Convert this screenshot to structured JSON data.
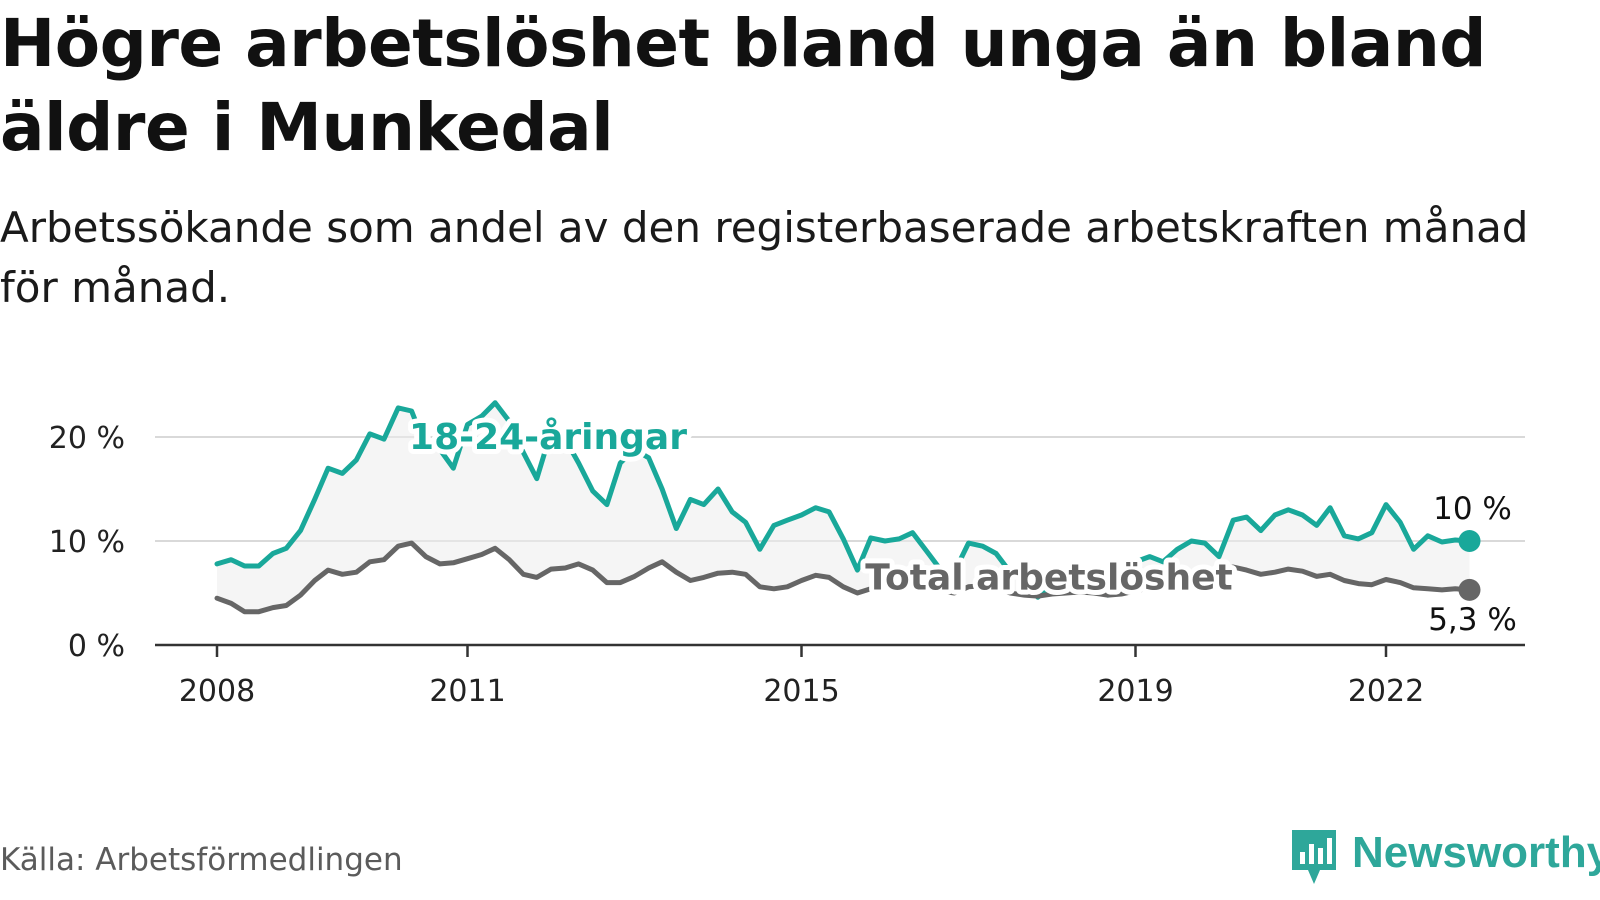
{
  "title": "Högre arbetslöshet bland unga än bland äldre i Munkedal",
  "subtitle": "Arbetssökande som andel av den registerbaserade arbetskraften månad för månad.",
  "source": "Källa: Arbetsförmedlingen",
  "brand": {
    "name": "Newsworthy",
    "icon": "newsworthy-logo-icon",
    "color": "#2ea79a"
  },
  "chart_data": {
    "type": "line",
    "title": "Högre arbetslöshet bland unga än bland äldre i Munkedal",
    "xlabel": "",
    "ylabel": "",
    "x_range": [
      2008,
      2023
    ],
    "ylim": [
      0,
      25
    ],
    "y_ticks": [
      {
        "value": 0,
        "label": "0 %"
      },
      {
        "value": 10,
        "label": "10 %"
      },
      {
        "value": 20,
        "label": "20 %"
      }
    ],
    "x_ticks": [
      {
        "value": 2008,
        "label": "2008"
      },
      {
        "value": 2011,
        "label": "2011"
      },
      {
        "value": 2015,
        "label": "2015"
      },
      {
        "value": 2019,
        "label": "2019"
      },
      {
        "value": 2022,
        "label": "2022"
      }
    ],
    "grid": true,
    "series": [
      {
        "name": "18-24-åringar",
        "color": "#19a89a",
        "end_label": "10 %",
        "points": [
          [
            2008.0,
            7.8
          ],
          [
            2008.17,
            8.2
          ],
          [
            2008.33,
            7.6
          ],
          [
            2008.5,
            7.6
          ],
          [
            2008.67,
            8.8
          ],
          [
            2008.83,
            9.3
          ],
          [
            2009.0,
            11.0
          ],
          [
            2009.17,
            14.0
          ],
          [
            2009.33,
            17.0
          ],
          [
            2009.5,
            16.5
          ],
          [
            2009.67,
            17.8
          ],
          [
            2009.83,
            20.3
          ],
          [
            2010.0,
            19.8
          ],
          [
            2010.17,
            22.8
          ],
          [
            2010.33,
            22.5
          ],
          [
            2010.5,
            19.0
          ],
          [
            2010.67,
            18.8
          ],
          [
            2010.83,
            17.0
          ],
          [
            2011.0,
            21.2
          ],
          [
            2011.17,
            22.0
          ],
          [
            2011.33,
            23.3
          ],
          [
            2011.5,
            21.5
          ],
          [
            2011.67,
            18.5
          ],
          [
            2011.83,
            16.0
          ],
          [
            2012.0,
            20.5
          ],
          [
            2012.17,
            19.8
          ],
          [
            2012.33,
            17.5
          ],
          [
            2012.5,
            14.8
          ],
          [
            2012.67,
            13.5
          ],
          [
            2012.83,
            17.5
          ],
          [
            2013.0,
            18.8
          ],
          [
            2013.17,
            18.0
          ],
          [
            2013.33,
            15.0
          ],
          [
            2013.5,
            11.2
          ],
          [
            2013.67,
            14.0
          ],
          [
            2013.83,
            13.5
          ],
          [
            2014.0,
            15.0
          ],
          [
            2014.17,
            12.8
          ],
          [
            2014.33,
            11.8
          ],
          [
            2014.5,
            9.2
          ],
          [
            2014.67,
            11.5
          ],
          [
            2014.83,
            12.0
          ],
          [
            2015.0,
            12.5
          ],
          [
            2015.17,
            13.2
          ],
          [
            2015.33,
            12.8
          ],
          [
            2015.5,
            10.2
          ],
          [
            2015.67,
            7.2
          ],
          [
            2015.83,
            10.3
          ],
          [
            2016.0,
            10.0
          ],
          [
            2016.17,
            10.2
          ],
          [
            2016.33,
            10.8
          ],
          [
            2016.5,
            9.0
          ],
          [
            2016.67,
            7.2
          ],
          [
            2016.83,
            7.0
          ],
          [
            2017.0,
            9.8
          ],
          [
            2017.17,
            9.5
          ],
          [
            2017.33,
            8.8
          ],
          [
            2017.5,
            7.0
          ],
          [
            2017.67,
            6.0
          ],
          [
            2017.83,
            4.6
          ],
          [
            2018.0,
            5.8
          ],
          [
            2018.17,
            7.0
          ],
          [
            2018.33,
            6.5
          ],
          [
            2018.5,
            5.5
          ],
          [
            2018.67,
            4.8
          ],
          [
            2018.83,
            5.8
          ],
          [
            2019.0,
            8.0
          ],
          [
            2019.17,
            8.5
          ],
          [
            2019.33,
            8.0
          ],
          [
            2019.5,
            9.2
          ],
          [
            2019.67,
            10.0
          ],
          [
            2019.83,
            9.8
          ],
          [
            2020.0,
            8.5
          ],
          [
            2020.17,
            12.0
          ],
          [
            2020.33,
            12.3
          ],
          [
            2020.5,
            11.0
          ],
          [
            2020.67,
            12.5
          ],
          [
            2020.83,
            13.0
          ],
          [
            2021.0,
            12.5
          ],
          [
            2021.17,
            11.5
          ],
          [
            2021.33,
            13.2
          ],
          [
            2021.5,
            10.5
          ],
          [
            2021.67,
            10.2
          ],
          [
            2021.83,
            10.8
          ],
          [
            2022.0,
            13.5
          ],
          [
            2022.17,
            11.8
          ],
          [
            2022.33,
            9.2
          ],
          [
            2022.5,
            10.5
          ],
          [
            2022.67,
            9.9
          ],
          [
            2022.83,
            10.1
          ],
          [
            2023.0,
            10.0
          ]
        ]
      },
      {
        "name": "Total arbetslöshet",
        "color": "#666666",
        "end_label": "5,3 %",
        "points": [
          [
            2008.0,
            4.5
          ],
          [
            2008.17,
            4.0
          ],
          [
            2008.33,
            3.2
          ],
          [
            2008.5,
            3.2
          ],
          [
            2008.67,
            3.6
          ],
          [
            2008.83,
            3.8
          ],
          [
            2009.0,
            4.8
          ],
          [
            2009.17,
            6.2
          ],
          [
            2009.33,
            7.2
          ],
          [
            2009.5,
            6.8
          ],
          [
            2009.67,
            7.0
          ],
          [
            2009.83,
            8.0
          ],
          [
            2010.0,
            8.2
          ],
          [
            2010.17,
            9.5
          ],
          [
            2010.33,
            9.8
          ],
          [
            2010.5,
            8.5
          ],
          [
            2010.67,
            7.8
          ],
          [
            2010.83,
            7.9
          ],
          [
            2011.0,
            8.3
          ],
          [
            2011.17,
            8.7
          ],
          [
            2011.33,
            9.3
          ],
          [
            2011.5,
            8.2
          ],
          [
            2011.67,
            6.8
          ],
          [
            2011.83,
            6.5
          ],
          [
            2012.0,
            7.3
          ],
          [
            2012.17,
            7.4
          ],
          [
            2012.33,
            7.8
          ],
          [
            2012.5,
            7.2
          ],
          [
            2012.67,
            6.0
          ],
          [
            2012.83,
            6.0
          ],
          [
            2013.0,
            6.6
          ],
          [
            2013.17,
            7.4
          ],
          [
            2013.33,
            8.0
          ],
          [
            2013.5,
            7.0
          ],
          [
            2013.67,
            6.2
          ],
          [
            2013.83,
            6.5
          ],
          [
            2014.0,
            6.9
          ],
          [
            2014.17,
            7.0
          ],
          [
            2014.33,
            6.8
          ],
          [
            2014.5,
            5.6
          ],
          [
            2014.67,
            5.4
          ],
          [
            2014.83,
            5.6
          ],
          [
            2015.0,
            6.2
          ],
          [
            2015.17,
            6.7
          ],
          [
            2015.33,
            6.5
          ],
          [
            2015.5,
            5.6
          ],
          [
            2015.67,
            5.0
          ],
          [
            2015.83,
            5.4
          ],
          [
            2016.0,
            5.8
          ],
          [
            2016.17,
            5.8
          ],
          [
            2016.33,
            5.7
          ],
          [
            2016.5,
            5.4
          ],
          [
            2016.67,
            5.2
          ],
          [
            2016.83,
            5.0
          ],
          [
            2017.0,
            5.6
          ],
          [
            2017.17,
            5.7
          ],
          [
            2017.33,
            5.4
          ],
          [
            2017.5,
            5.0
          ],
          [
            2017.67,
            4.8
          ],
          [
            2017.83,
            4.7
          ],
          [
            2018.0,
            4.9
          ],
          [
            2018.17,
            5.0
          ],
          [
            2018.33,
            5.1
          ],
          [
            2018.5,
            5.0
          ],
          [
            2018.67,
            4.8
          ],
          [
            2018.83,
            4.9
          ],
          [
            2019.0,
            5.2
          ],
          [
            2019.17,
            5.5
          ],
          [
            2019.33,
            5.8
          ],
          [
            2019.5,
            6.2
          ],
          [
            2019.67,
            6.6
          ],
          [
            2019.83,
            6.9
          ],
          [
            2020.0,
            7.0
          ],
          [
            2020.17,
            7.5
          ],
          [
            2020.33,
            7.2
          ],
          [
            2020.5,
            6.8
          ],
          [
            2020.67,
            7.0
          ],
          [
            2020.83,
            7.3
          ],
          [
            2021.0,
            7.1
          ],
          [
            2021.17,
            6.6
          ],
          [
            2021.33,
            6.8
          ],
          [
            2021.5,
            6.2
          ],
          [
            2021.67,
            5.9
          ],
          [
            2021.83,
            5.8
          ],
          [
            2022.0,
            6.3
          ],
          [
            2022.17,
            6.0
          ],
          [
            2022.33,
            5.5
          ],
          [
            2022.5,
            5.4
          ],
          [
            2022.67,
            5.3
          ],
          [
            2022.83,
            5.4
          ],
          [
            2023.0,
            5.3
          ]
        ]
      }
    ],
    "annotations": [
      {
        "text": "18-24-åringar",
        "series": "18-24-åringar",
        "x": 2012.0,
        "y": 20.0
      },
      {
        "text": "Total arbetslöshet",
        "series": "Total arbetslöshet",
        "x": 2018.0,
        "y": 6.5
      }
    ]
  }
}
